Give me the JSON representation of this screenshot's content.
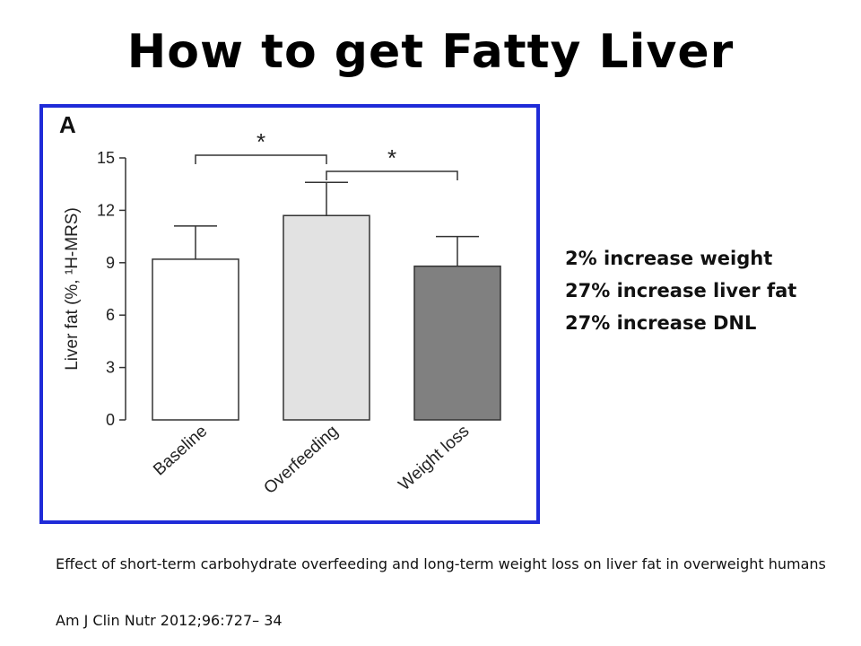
{
  "slide": {
    "title": "How to get Fatty Liver",
    "stats": [
      "2% increase weight",
      "27% increase liver fat",
      "27% increase DNL"
    ],
    "caption": "Effect of short-term carbohydrate overfeeding and long-term weight loss on liver fat in overweight humans",
    "citation": "Am J Clin Nutr 2012;96:727– 34"
  },
  "chart_data": {
    "type": "bar",
    "panel_label": "A",
    "categories": [
      "Baseline",
      "Overfeeding",
      "Weight loss"
    ],
    "values": [
      9.2,
      11.7,
      8.8
    ],
    "error_upper": [
      11.1,
      13.6,
      10.5
    ],
    "bar_colors": [
      "#ffffff",
      "#e2e2e2",
      "#808080"
    ],
    "ylabel": "Liver fat (%, ¹H-MRS)",
    "ylim": [
      0,
      15
    ],
    "yticks": [
      0,
      3,
      6,
      9,
      12,
      15
    ],
    "significance": [
      {
        "from": 0,
        "to": 1,
        "label": "*"
      },
      {
        "from": 1,
        "to": 2,
        "label": "*"
      }
    ],
    "grid": false
  },
  "colors": {
    "frame_border": "#1f2bd8"
  }
}
